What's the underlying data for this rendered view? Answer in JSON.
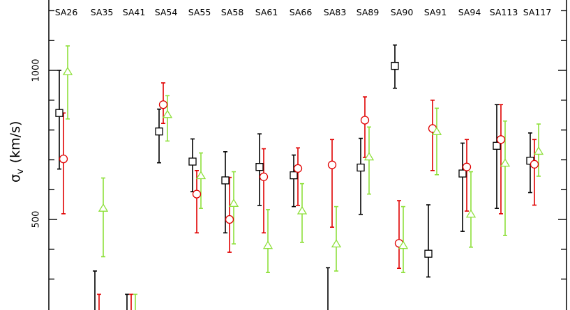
{
  "chart_data": {
    "type": "scatter",
    "ylabel": "σ",
    "ylabel_subscript": "v",
    "ylabel_units": "(km/s)",
    "ylim": [
      200,
      1200
    ],
    "yticks": [
      1000,
      500
    ],
    "categories": [
      "SA26",
      "SA35",
      "SA41",
      "SA54",
      "SA55",
      "SA58",
      "SA61",
      "SA66",
      "SA83",
      "SA89",
      "SA90",
      "SA91",
      "SA94",
      "SA113",
      "SA117"
    ],
    "grid": false,
    "colors": {
      "black": "#000000",
      "red": "#e00000",
      "green": "#8ee03a"
    },
    "series": [
      {
        "marker": "square",
        "color": "#000000",
        "points": [
          {
            "cat": "SA26",
            "y": 857,
            "lo": 669,
            "hi": 1000
          },
          {
            "cat": "SA35",
            "lo": 180,
            "hi": 327
          },
          {
            "cat": "SA41",
            "lo": 180,
            "hi": 249
          },
          {
            "cat": "SA54",
            "y": 795,
            "lo": 690,
            "hi": 870
          },
          {
            "cat": "SA55",
            "y": 694,
            "lo": 593,
            "hi": 770
          },
          {
            "cat": "SA58",
            "y": 631,
            "lo": 455,
            "hi": 727
          },
          {
            "cat": "SA61",
            "y": 676,
            "lo": 547,
            "hi": 787
          },
          {
            "cat": "SA66",
            "y": 648,
            "lo": 543,
            "hi": 716
          },
          {
            "cat": "SA83",
            "lo": 180,
            "hi": 338
          },
          {
            "cat": "SA89",
            "y": 674,
            "lo": 517,
            "hi": 772
          },
          {
            "cat": "SA90",
            "y": 1015,
            "lo": 940,
            "hi": 1085
          },
          {
            "cat": "SA91",
            "y": 385,
            "lo": 307,
            "hi": 549
          },
          {
            "cat": "SA94",
            "y": 654,
            "lo": 460,
            "hi": 756
          },
          {
            "cat": "SA113",
            "y": 747,
            "lo": 537,
            "hi": 885
          },
          {
            "cat": "SA117",
            "y": 697,
            "lo": 590,
            "hi": 790
          }
        ]
      },
      {
        "marker": "circle",
        "color": "#e00000",
        "points": [
          {
            "cat": "SA26",
            "y": 703,
            "lo": 519,
            "hi": 857
          },
          {
            "cat": "SA35",
            "lo": 180,
            "hi": 249
          },
          {
            "cat": "SA41",
            "lo": 180,
            "hi": 249
          },
          {
            "cat": "SA54",
            "y": 885,
            "lo": 822,
            "hi": 958
          },
          {
            "cat": "SA55",
            "y": 585,
            "lo": 455,
            "hi": 664
          },
          {
            "cat": "SA58",
            "y": 500,
            "lo": 390,
            "hi": 641
          },
          {
            "cat": "SA61",
            "y": 643,
            "lo": 455,
            "hi": 737
          },
          {
            "cat": "SA66",
            "y": 671,
            "lo": 547,
            "hi": 740
          },
          {
            "cat": "SA83",
            "y": 683,
            "lo": 474,
            "hi": 768
          },
          {
            "cat": "SA89",
            "y": 833,
            "lo": 708,
            "hi": 911
          },
          {
            "cat": "SA90",
            "y": 420,
            "lo": 336,
            "hi": 563
          },
          {
            "cat": "SA91",
            "y": 805,
            "lo": 664,
            "hi": 900
          },
          {
            "cat": "SA94",
            "y": 676,
            "lo": 528,
            "hi": 768
          },
          {
            "cat": "SA113",
            "y": 768,
            "lo": 519,
            "hi": 885
          },
          {
            "cat": "SA117",
            "y": 685,
            "lo": 548,
            "hi": 768
          }
        ]
      },
      {
        "marker": "triangle",
        "color": "#8ee03a",
        "points": [
          {
            "cat": "SA26",
            "y": 995,
            "lo": 837,
            "hi": 1082
          },
          {
            "cat": "SA35",
            "y": 537,
            "lo": 375,
            "hi": 639
          },
          {
            "cat": "SA41",
            "lo": 180,
            "hi": 249
          },
          {
            "cat": "SA54",
            "y": 851,
            "lo": 763,
            "hi": 915
          },
          {
            "cat": "SA55",
            "y": 646,
            "lo": 537,
            "hi": 723
          },
          {
            "cat": "SA58",
            "y": 553,
            "lo": 418,
            "hi": 660
          },
          {
            "cat": "SA61",
            "y": 412,
            "lo": 322,
            "hi": 533
          },
          {
            "cat": "SA66",
            "y": 528,
            "lo": 423,
            "hi": 620
          },
          {
            "cat": "SA83",
            "y": 417,
            "lo": 327,
            "hi": 543
          },
          {
            "cat": "SA89",
            "y": 709,
            "lo": 585,
            "hi": 810
          },
          {
            "cat": "SA90",
            "y": 412,
            "lo": 322,
            "hi": 543
          },
          {
            "cat": "SA91",
            "y": 794,
            "lo": 650,
            "hi": 873
          },
          {
            "cat": "SA94",
            "y": 517,
            "lo": 407,
            "hi": 660
          },
          {
            "cat": "SA113",
            "y": 688,
            "lo": 446,
            "hi": 830
          },
          {
            "cat": "SA117",
            "y": 728,
            "lo": 645,
            "hi": 820
          }
        ]
      }
    ]
  }
}
